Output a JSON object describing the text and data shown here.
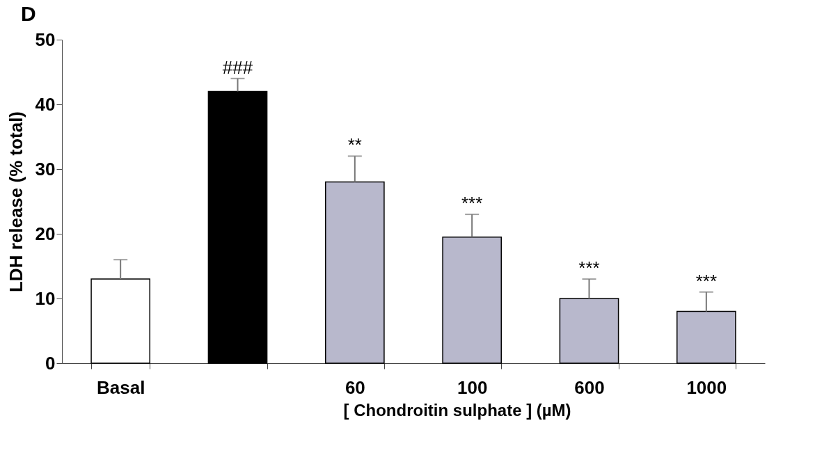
{
  "chart_data": {
    "type": "bar",
    "title": "D",
    "ylabel": "LDH release (% total)",
    "xlabel": "[ Chondroitin sulphate ] (µM)",
    "categories": [
      "Basal",
      null,
      "60",
      "100",
      "600",
      "1000"
    ],
    "values": [
      13,
      42,
      28,
      19.5,
      10,
      8
    ],
    "errors": [
      [
        13,
        16
      ],
      [
        42,
        44
      ],
      [
        28,
        32
      ],
      [
        19.5,
        23
      ],
      [
        10,
        13
      ],
      [
        8,
        11
      ]
    ],
    "colors": [
      "#ffffff",
      "#000000",
      "#b8b8cc",
      "#b8b8cc",
      "#b8b8cc",
      "#b8b8cc"
    ],
    "ylim": [
      0,
      50
    ],
    "yticks": [
      0,
      10,
      20,
      30,
      40,
      50
    ],
    "grid": false,
    "annotations": [
      {
        "text": "###",
        "y": 44
      },
      {
        "text": "**",
        "x": "60",
        "y": 32
      },
      {
        "text": "***",
        "x": "100",
        "y": 23
      },
      {
        "text": "***",
        "x": "600",
        "y": 13
      },
      {
        "text": "***",
        "x": "1000",
        "y": 11
      }
    ]
  }
}
